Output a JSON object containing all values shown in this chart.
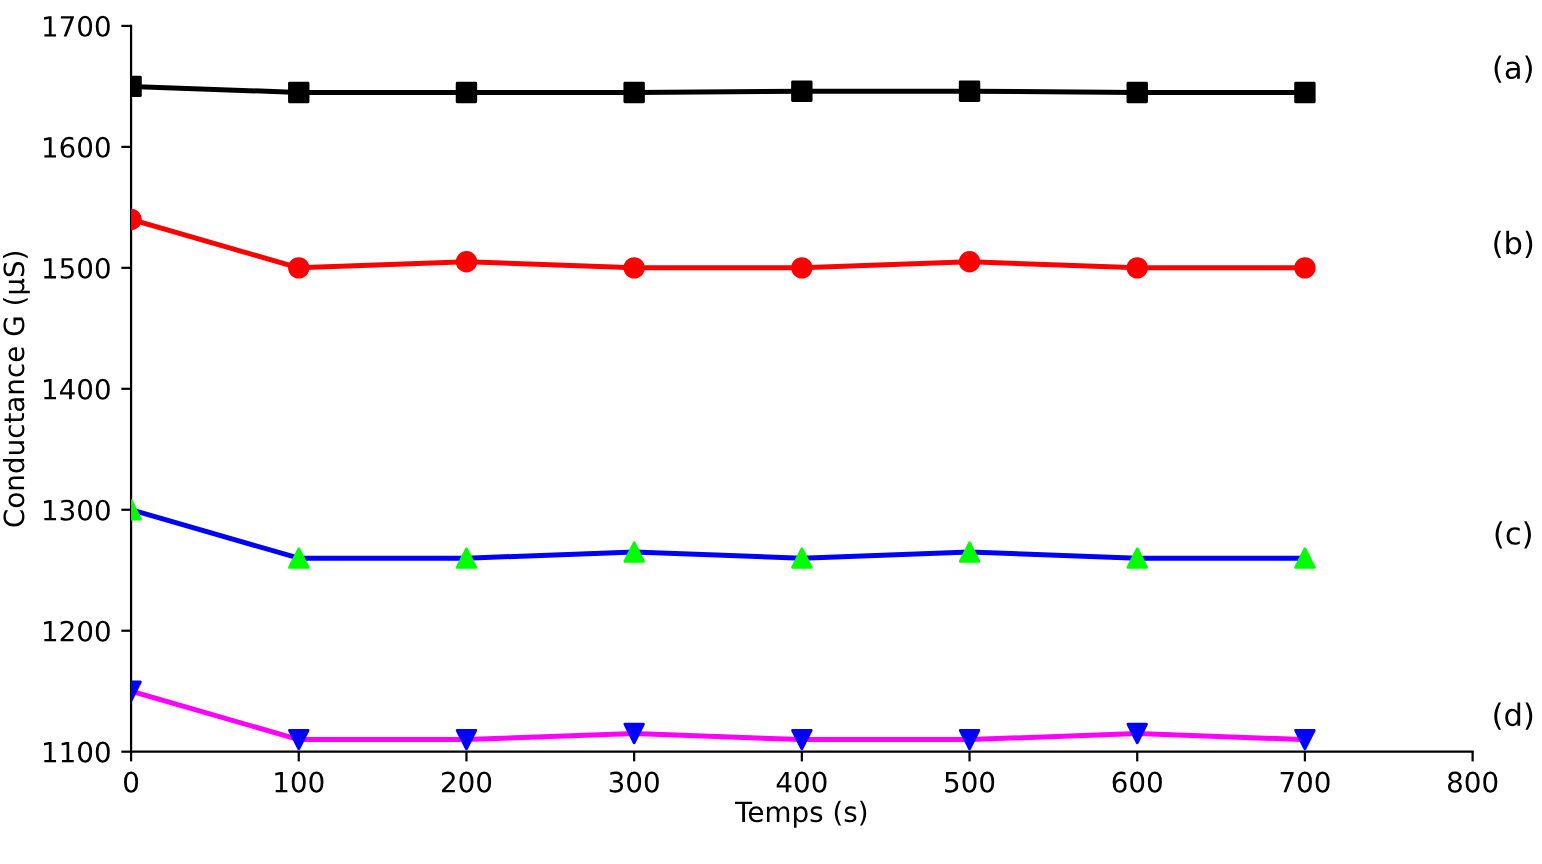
{
  "chart_data": {
    "type": "line",
    "xlabel": "Temps (s)",
    "ylabel": "Conductance G (µS)",
    "x": [
      0,
      100,
      200,
      300,
      400,
      500,
      600,
      700
    ],
    "series": [
      {
        "name": "(a)",
        "color": "#000000",
        "colors": [
          "#000000",
          "#000000",
          "#000000",
          "#000000",
          "#000000",
          "#000000",
          "#000000",
          "#000000"
        ],
        "marker": "square",
        "values": [
          1650,
          1645,
          1645,
          1645,
          1646,
          1646,
          1645,
          1645
        ]
      },
      {
        "name": "(b)",
        "color": "#ff0000",
        "colors": [
          "#ff0000",
          "#ff0000",
          "#ff0000",
          "#ff0000",
          "#ff0000",
          "#ff0000",
          "#ff0000",
          "#ff0000"
        ],
        "marker": "circle",
        "values": [
          1540,
          1500,
          1505,
          1500,
          1500,
          1505,
          1500,
          1500
        ]
      },
      {
        "name": "(c)",
        "color": "#0000ff",
        "colors": [
          "#00ff00",
          "#00ff00",
          "#00ff00",
          "#00ff00",
          "#00ff00",
          "#00ff00",
          "#00ff00",
          "#00ff00"
        ],
        "marker": "triangle",
        "values": [
          1300,
          1260,
          1260,
          1265,
          1260,
          1265,
          1260,
          1260
        ]
      },
      {
        "name": "(d)",
        "color": "#ff00ff",
        "colors": [
          "#0000ff",
          "#0000ff",
          "#0000ff",
          "#0000ff",
          "#0000ff",
          "#0000ff",
          "#0000ff",
          "#0000ff"
        ],
        "marker": "triangle_down",
        "values": [
          1150,
          1110,
          1110,
          1115,
          1110,
          1110,
          1115,
          1110
        ]
      }
    ],
    "xlim": [
      0,
      800
    ],
    "xticks": [
      0,
      100,
      200,
      300,
      400,
      500,
      600,
      700,
      800
    ],
    "ylim": [
      1100,
      1700
    ],
    "yticks": [
      1100,
      1200,
      1300,
      1400,
      1500,
      1600,
      1700
    ],
    "line_style": "solid"
  }
}
